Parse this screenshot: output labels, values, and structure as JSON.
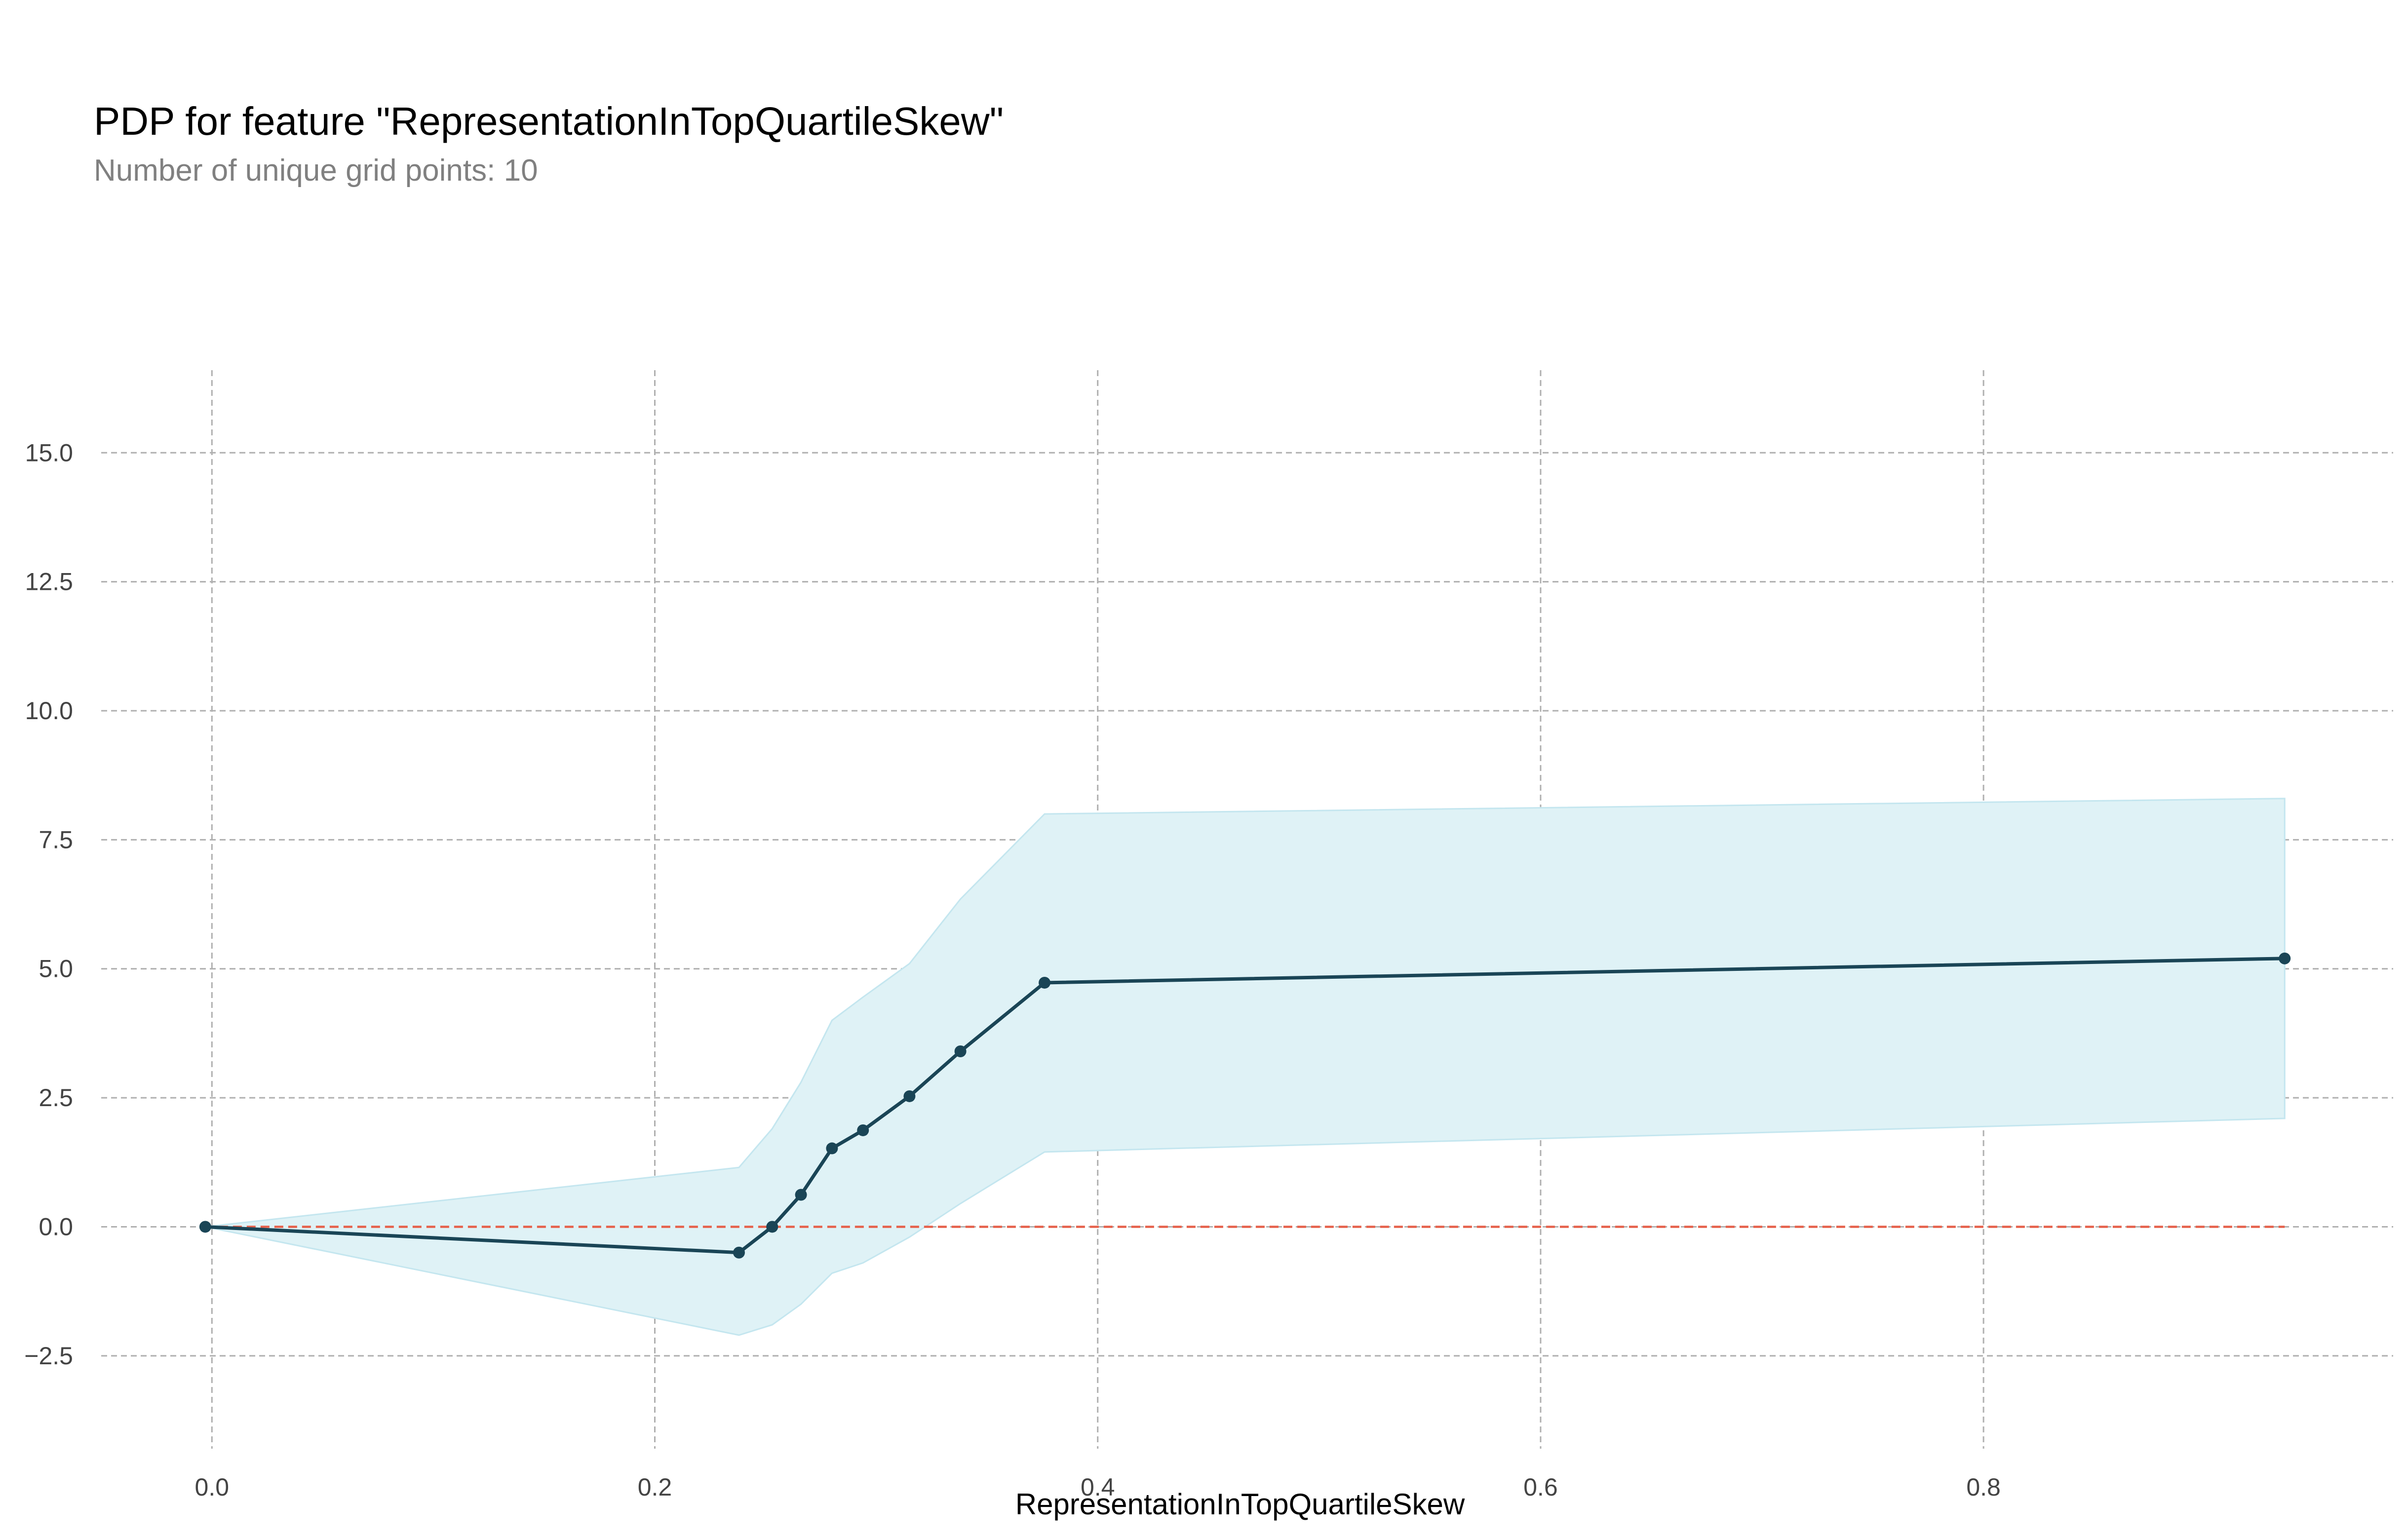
{
  "chart_data": {
    "type": "line",
    "title": "PDP for feature \"RepresentationInTopQuartileSkew\"",
    "subtitle": "Number of unique grid points: 10",
    "xlabel": "RepresentationInTopQuartileSkew",
    "ylabel": "",
    "xlim": [
      -0.05,
      0.985
    ],
    "ylim": [
      -4.3,
      16.6
    ],
    "grid": true,
    "x_ticks": [
      0.0,
      0.2,
      0.4,
      0.6,
      0.8
    ],
    "x_tick_labels": [
      "0.0",
      "0.2",
      "0.4",
      "0.6",
      "0.8"
    ],
    "y_ticks": [
      -2.5,
      0.0,
      2.5,
      5.0,
      7.5,
      10.0,
      12.5,
      15.0
    ],
    "y_tick_labels": [
      "−2.5",
      "0.0",
      "2.5",
      "5.0",
      "7.5",
      "10.0",
      "12.5",
      "15.0"
    ],
    "series": [
      {
        "x": [
          -0.003,
          0.238,
          0.253,
          0.266,
          0.28,
          0.294,
          0.315,
          0.338,
          0.376,
          0.936
        ],
        "values": [
          0.0,
          -0.5,
          0.0,
          0.62,
          1.52,
          1.87,
          2.53,
          3.4,
          4.73,
          5.2
        ],
        "upper": [
          0.0,
          1.15,
          1.9,
          2.8,
          4.0,
          4.45,
          5.1,
          6.35,
          8.0,
          8.3
        ],
        "lower": [
          0.0,
          -2.1,
          -1.9,
          -1.5,
          -0.9,
          -0.7,
          -0.2,
          0.45,
          1.45,
          2.1
        ]
      }
    ],
    "baseline": 0.0,
    "colors": {
      "line": "#1a4556",
      "band": "#dff2f6",
      "band_edge": "#c4e6ef",
      "baseline": "#e6604a",
      "grid": "#b0b0b0",
      "tick_text": "#444444"
    }
  }
}
